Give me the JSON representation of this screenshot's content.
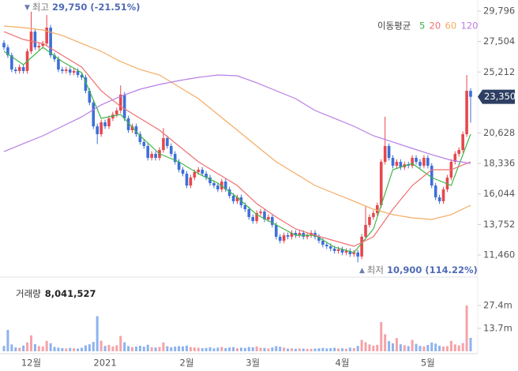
{
  "chart_data": {
    "type": "candlestick",
    "categories": [
      null,
      null,
      null,
      null,
      null,
      null,
      null,
      "12월",
      null,
      null,
      null,
      null,
      null,
      null,
      null,
      null,
      null,
      null,
      null,
      null,
      null,
      null,
      null,
      null,
      null,
      null,
      "2021",
      null,
      null,
      null,
      null,
      null,
      null,
      null,
      null,
      null,
      null,
      null,
      null,
      null,
      null,
      null,
      null,
      null,
      null,
      null,
      null,
      "2월",
      null,
      null,
      null,
      null,
      null,
      null,
      null,
      null,
      null,
      null,
      null,
      null,
      null,
      null,
      null,
      null,
      "3월",
      null,
      null,
      null,
      null,
      null,
      null,
      null,
      null,
      null,
      null,
      null,
      null,
      null,
      null,
      null,
      null,
      null,
      null,
      null,
      null,
      null,
      null,
      "4월",
      null,
      null,
      null,
      null,
      null,
      null,
      null,
      null,
      null,
      null,
      null,
      null,
      null,
      null,
      null,
      null,
      null,
      null,
      null,
      null,
      null,
      "5월",
      null,
      null,
      null,
      null,
      null,
      null,
      null,
      null,
      null,
      null,
      null
    ],
    "open": [
      27400,
      27070,
      26470,
      25400,
      25290,
      25580,
      25290,
      26770,
      28250,
      27070,
      27180,
      27360,
      28550,
      26470,
      26180,
      25400,
      25290,
      25400,
      25170,
      25290,
      24990,
      24810,
      23800,
      22910,
      21130,
      20540,
      21430,
      21130,
      21730,
      22020,
      22320,
      23510,
      21730,
      20840,
      21130,
      20540,
      19950,
      19650,
      18760,
      19060,
      18760,
      19350,
      20240,
      19650,
      19060,
      18460,
      17870,
      17570,
      16680,
      17280,
      17690,
      17870,
      17570,
      17280,
      16860,
      16680,
      16390,
      16980,
      16390,
      15910,
      15500,
      15790,
      15200,
      14900,
      14310,
      14010,
      14610,
      14720,
      14130,
      14310,
      13720,
      12830,
      12530,
      12940,
      12830,
      13120,
      12940,
      13120,
      12830,
      12940,
      13120,
      12830,
      12530,
      12230,
      12110,
      11940,
      11760,
      11880,
      11640,
      11760,
      11520,
      11640,
      11340,
      12830,
      13720,
      14310,
      14610,
      15200,
      18460,
      19650,
      18760,
      18170,
      18460,
      18050,
      18280,
      18170,
      18760,
      18460,
      18170,
      18760,
      18170,
      16680,
      15790,
      15500,
      16390,
      17280,
      18460,
      19060,
      19350,
      20540,
      23800
    ],
    "high": [
      27600,
      27270,
      26670,
      25600,
      25780,
      25780,
      26970,
      29750,
      28450,
      27380,
      27560,
      29500,
      28750,
      26670,
      26380,
      25600,
      25600,
      25600,
      25490,
      25490,
      25190,
      25010,
      24000,
      23110,
      21330,
      21630,
      21630,
      21930,
      22220,
      22520,
      24200,
      23710,
      21930,
      21330,
      21330,
      20740,
      20150,
      19850,
      19260,
      19260,
      19550,
      21000,
      20440,
      19850,
      19260,
      18660,
      18070,
      17770,
      17480,
      17890,
      18070,
      18070,
      17770,
      17480,
      17060,
      16880,
      17180,
      17180,
      16590,
      16110,
      15990,
      15990,
      15400,
      15100,
      14510,
      14810,
      14920,
      14920,
      14510,
      14510,
      13920,
      13030,
      13140,
      13140,
      13320,
      13320,
      13320,
      13320,
      13140,
      13320,
      13320,
      13030,
      12730,
      12430,
      12310,
      12140,
      12080,
      12080,
      11960,
      11960,
      11840,
      11840,
      13030,
      15100,
      14510,
      14810,
      15400,
      18660,
      21850,
      19850,
      18960,
      18660,
      18660,
      18480,
      18480,
      18960,
      18960,
      18660,
      18960,
      18960,
      18370,
      16880,
      15990,
      16590,
      17480,
      18660,
      19260,
      19550,
      20740,
      24990,
      24000
    ],
    "low": [
      26870,
      26270,
      25200,
      25090,
      25090,
      25090,
      25090,
      26570,
      26870,
      26870,
      26980,
      27160,
      26270,
      25980,
      25200,
      25090,
      25090,
      24970,
      24970,
      24790,
      24610,
      23600,
      22710,
      20930,
      19800,
      20340,
      20930,
      20930,
      21530,
      21820,
      22120,
      21530,
      20640,
      20640,
      20340,
      19750,
      19450,
      18560,
      18560,
      18560,
      18560,
      19150,
      19450,
      18860,
      18260,
      17670,
      17370,
      16480,
      16480,
      17080,
      17490,
      17370,
      17080,
      16660,
      16480,
      16190,
      16190,
      16190,
      15710,
      15300,
      15300,
      15000,
      14700,
      14110,
      13810,
      13810,
      14410,
      13930,
      13930,
      13520,
      12630,
      12330,
      12330,
      12630,
      12630,
      12740,
      12740,
      12630,
      12630,
      12740,
      12630,
      12330,
      12030,
      11910,
      11740,
      11560,
      11560,
      11440,
      11440,
      11320,
      11320,
      10900,
      11140,
      12630,
      13520,
      14110,
      14410,
      15000,
      18260,
      18560,
      17970,
      17970,
      17850,
      17850,
      17970,
      17970,
      18260,
      17970,
      17970,
      17970,
      16480,
      15590,
      15300,
      15300,
      16190,
      17080,
      18260,
      18860,
      19150,
      20340,
      21400
    ],
    "close": [
      27070,
      26470,
      25400,
      25290,
      25580,
      25290,
      26770,
      28250,
      27070,
      27180,
      27360,
      28550,
      26470,
      26180,
      25400,
      25290,
      25400,
      25170,
      25290,
      24990,
      24810,
      23800,
      22910,
      21130,
      20540,
      21430,
      21130,
      21730,
      22020,
      22320,
      23510,
      21730,
      20840,
      21130,
      20540,
      19950,
      19650,
      18760,
      19060,
      18760,
      19350,
      20240,
      19650,
      19060,
      18460,
      17870,
      17570,
      16680,
      17280,
      17690,
      17870,
      17570,
      17280,
      16860,
      16680,
      16390,
      16980,
      16390,
      15910,
      15500,
      15790,
      15200,
      14900,
      14310,
      14010,
      14610,
      14720,
      14130,
      14310,
      13720,
      12830,
      12530,
      12940,
      12830,
      13120,
      12940,
      13120,
      12830,
      12940,
      13120,
      12830,
      12530,
      12230,
      12110,
      11940,
      11760,
      11880,
      11640,
      11760,
      11520,
      11640,
      11340,
      12830,
      13720,
      14310,
      14610,
      15200,
      18460,
      19650,
      18760,
      18170,
      18460,
      18050,
      18280,
      18170,
      18760,
      18460,
      18170,
      18760,
      18170,
      16680,
      15790,
      15500,
      16390,
      17280,
      18460,
      19060,
      19350,
      20540,
      23800,
      23350
    ],
    "volume": [
      3200000,
      12800000,
      4100000,
      2300000,
      2100000,
      3400000,
      5200000,
      9500000,
      4300000,
      3100000,
      2900000,
      6200000,
      4800000,
      2600000,
      2200000,
      1900000,
      1700000,
      2000000,
      1800000,
      1600000,
      2100000,
      3500000,
      4200000,
      5600000,
      21000000,
      6300000,
      3200000,
      3800000,
      2900000,
      3600000,
      9200000,
      5400000,
      3100000,
      2500000,
      2800000,
      3300000,
      2700000,
      3900000,
      2400000,
      2200000,
      2600000,
      5300000,
      3000000,
      2400000,
      2800000,
      3100000,
      2900000,
      3400000,
      2500000,
      2300000,
      2100000,
      1900000,
      2000000,
      2400000,
      1800000,
      2200000,
      2600000,
      1900000,
      2300000,
      2500000,
      1800000,
      2200000,
      2000000,
      2600000,
      2400000,
      2900000,
      2100000,
      2000000,
      1700000,
      2300000,
      3100000,
      2700000,
      2200000,
      1600000,
      1800000,
      1500000,
      1700000,
      1600000,
      1400000,
      1500000,
      1600000,
      1800000,
      2000000,
      1700000,
      1900000,
      2100000,
      1600000,
      1800000,
      1500000,
      2200000,
      1900000,
      3200000,
      6800000,
      5400000,
      4100000,
      3300000,
      3900000,
      17500000,
      10200000,
      6100000,
      4800000,
      7900000,
      4200000,
      3600000,
      3100000,
      6800000,
      4400000,
      3200000,
      2900000,
      3800000,
      5200000,
      4600000,
      3300000,
      2800000,
      3100000,
      6200000,
      4100000,
      3500000,
      4900000,
      27400000,
      8041527
    ],
    "up_color": "#e5474d",
    "down_color": "#3c6fd8",
    "volume_up_color": "#f4a3a8",
    "volume_down_color": "#8db3ef",
    "ylim": [
      10154,
      30627
    ],
    "yticks": [
      {
        "value": 11460,
        "label": "11,460"
      },
      {
        "value": 13752,
        "label": "13,752"
      },
      {
        "value": 16044,
        "label": "16,044"
      },
      {
        "value": 18336,
        "label": "18,336"
      },
      {
        "value": 20628,
        "label": "20,628"
      },
      {
        "value": 25212,
        "label": "25,212"
      },
      {
        "value": 27504,
        "label": "27,504"
      },
      {
        "value": 29796,
        "label": "29,796"
      }
    ],
    "volume_ylim": [
      0,
      42520000
    ],
    "volume_yticks": [
      {
        "value": 13700000,
        "label": "13.7m"
      },
      {
        "value": 27400000,
        "label": "27.4m"
      }
    ],
    "moving_average": {
      "title": "이동평균",
      "x": [
        0,
        5,
        10,
        15,
        20,
        25,
        30,
        35,
        40,
        45,
        50,
        55,
        60,
        65,
        70,
        75,
        80,
        85,
        90,
        95,
        100,
        105,
        110,
        115,
        120
      ],
      "series": [
        {
          "name": "5",
          "color": "#3fb54a",
          "values": [
            26770,
            25760,
            27070,
            26000,
            25170,
            21730,
            22020,
            20420,
            19060,
            18460,
            17570,
            16860,
            15790,
            14490,
            13720,
            12940,
            12940,
            12050,
            11640,
            13420,
            17870,
            18340,
            17280,
            16680,
            20540
          ]
        },
        {
          "name": "20",
          "color": "#f07070",
          "values": [
            28250,
            27660,
            27360,
            26470,
            25580,
            23800,
            22620,
            21730,
            20840,
            19650,
            18460,
            17570,
            16680,
            15320,
            14310,
            13420,
            12940,
            12530,
            12110,
            12830,
            14900,
            16680,
            17870,
            17870,
            18460
          ]
        },
        {
          "name": "60",
          "color": "#f5ab63",
          "values": [
            28670,
            28550,
            28370,
            27960,
            27360,
            26770,
            26000,
            25400,
            24990,
            24100,
            23210,
            22020,
            20840,
            19650,
            18460,
            17570,
            16680,
            16090,
            15500,
            14900,
            14490,
            14250,
            14130,
            14490,
            15200
          ]
        },
        {
          "name": "120",
          "color": "#b87de6",
          "values": [
            19230,
            19830,
            20420,
            21130,
            21840,
            22740,
            23390,
            23920,
            24280,
            24570,
            24810,
            24990,
            24930,
            24400,
            23800,
            23210,
            22320,
            21730,
            21130,
            20420,
            19950,
            19470,
            19000,
            18580,
            18340
          ]
        }
      ]
    },
    "high_note": {
      "label": "최고",
      "text": "29,750 (-21.51%)"
    },
    "low_note": {
      "label": "최저",
      "text": "10,900 (114.22%)"
    },
    "last_label": "23,350",
    "volume_title": "거래량",
    "volume_last_label": "8,041,527"
  }
}
